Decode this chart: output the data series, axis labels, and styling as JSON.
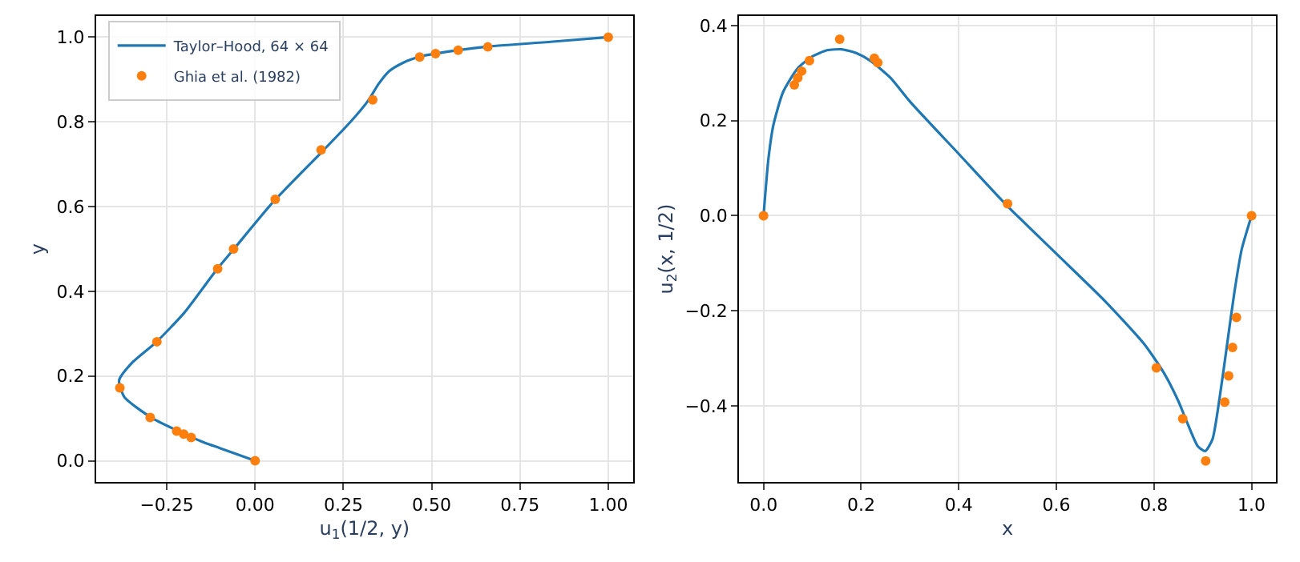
{
  "chart_data": [
    {
      "type": "line",
      "xlabel": "u$_{1}$(1/2, y)",
      "ylabel": "y",
      "xlim": [
        -0.45,
        1.07
      ],
      "ylim": [
        -0.05,
        1.05
      ],
      "xticks": [
        {
          "value": -0.25,
          "label": "−0.25"
        },
        {
          "value": 0,
          "label": "0.00"
        },
        {
          "value": 0.25,
          "label": "0.25"
        },
        {
          "value": 0.5,
          "label": "0.50"
        },
        {
          "value": 0.75,
          "label": "0.75"
        },
        {
          "value": 1,
          "label": "1.00"
        }
      ],
      "yticks": [
        {
          "value": 0,
          "label": "0.0"
        },
        {
          "value": 0.2,
          "label": "0.2"
        },
        {
          "value": 0.4,
          "label": "0.4"
        },
        {
          "value": 0.6,
          "label": "0.6"
        },
        {
          "value": 0.8,
          "label": "0.8"
        },
        {
          "value": 1,
          "label": "1.0"
        }
      ],
      "grid": true,
      "legend": "top left",
      "series": [
        {
          "name": "Taylor–Hood, 64 × 64",
          "color": "#1f77b4",
          "marker": "none",
          "line_style": "solid",
          "values": [
            0,
            0.03,
            0.045,
            0.1,
            0.15,
            0.19,
            0.23,
            0.28,
            0.35,
            0.45,
            0.5,
            0.61,
            0.73,
            0.8,
            0.85,
            0.89,
            0.92,
            0.94,
            0.955,
            0.97,
            0.978,
            0.99,
            1
          ],
          "x": [
            0,
            -0.1,
            -0.15,
            -0.29,
            -0.37,
            -0.385,
            -0.35,
            -0.28,
            -0.2,
            -0.11,
            -0.06,
            0.05,
            0.19,
            0.27,
            0.32,
            0.35,
            0.38,
            0.42,
            0.47,
            0.58,
            0.66,
            0.85,
            1
          ]
        },
        {
          "name": "Ghia et al. (1982)",
          "type": "scatter",
          "color": "#ff7f0e",
          "marker": "circle",
          "values": [
            1,
            0.977,
            0.969,
            0.961,
            0.953,
            0.852,
            0.734,
            0.617,
            0.5,
            0.453,
            0.281,
            0.172,
            0.102,
            0.07,
            0.063,
            0.055,
            0
          ],
          "x": [
            1,
            0.659,
            0.575,
            0.511,
            0.466,
            0.333,
            0.187,
            0.057,
            -0.061,
            -0.106,
            -0.278,
            -0.383,
            -0.297,
            -0.222,
            -0.202,
            -0.181,
            0
          ]
        }
      ]
    },
    {
      "type": "line",
      "xlabel": "x",
      "ylabel": "u$_{2}$(x, 1/2)",
      "xlim": [
        -0.05,
        1.05
      ],
      "ylim": [
        -0.56,
        0.42
      ],
      "xticks": [
        {
          "value": 0,
          "label": "0.0"
        },
        {
          "value": 0.2,
          "label": "0.2"
        },
        {
          "value": 0.4,
          "label": "0.4"
        },
        {
          "value": 0.6,
          "label": "0.6"
        },
        {
          "value": 0.8,
          "label": "0.8"
        },
        {
          "value": 1,
          "label": "1.0"
        }
      ],
      "yticks": [
        {
          "value": -0.4,
          "label": "−0.4"
        },
        {
          "value": -0.2,
          "label": "−0.2"
        },
        {
          "value": 0,
          "label": "0.0"
        },
        {
          "value": 0.2,
          "label": "0.2"
        },
        {
          "value": 0.4,
          "label": "0.4"
        }
      ],
      "grid": true,
      "series": [
        {
          "color": "#1f77b4",
          "marker": "none",
          "line_style": "solid",
          "x": [
            0,
            0.01,
            0.02,
            0.04,
            0.07,
            0.1,
            0.13,
            0.16,
            0.19,
            0.22,
            0.26,
            0.3,
            0.4,
            0.5,
            0.6,
            0.7,
            0.78,
            0.82,
            0.85,
            0.87,
            0.89,
            0.905,
            0.92,
            0.935,
            0.95,
            0.965,
            0.98,
            1
          ],
          "values": [
            0,
            0.12,
            0.19,
            0.26,
            0.31,
            0.335,
            0.348,
            0.35,
            0.342,
            0.325,
            0.29,
            0.24,
            0.13,
            0.02,
            -0.08,
            -0.18,
            -0.27,
            -0.33,
            -0.39,
            -0.44,
            -0.485,
            -0.495,
            -0.47,
            -0.38,
            -0.27,
            -0.16,
            -0.07,
            0
          ]
        },
        {
          "type": "scatter",
          "color": "#ff7f0e",
          "marker": "circle",
          "x": [
            1,
            0.969,
            0.961,
            0.953,
            0.945,
            0.906,
            0.859,
            0.805,
            0.5,
            0.234,
            0.227,
            0.156,
            0.094,
            0.078,
            0.07,
            0.063,
            0
          ],
          "values": [
            0,
            -0.214,
            -0.277,
            -0.337,
            -0.392,
            -0.516,
            -0.427,
            -0.32,
            0.025,
            0.322,
            0.331,
            0.371,
            0.326,
            0.304,
            0.29,
            0.275,
            0
          ]
        }
      ]
    }
  ]
}
